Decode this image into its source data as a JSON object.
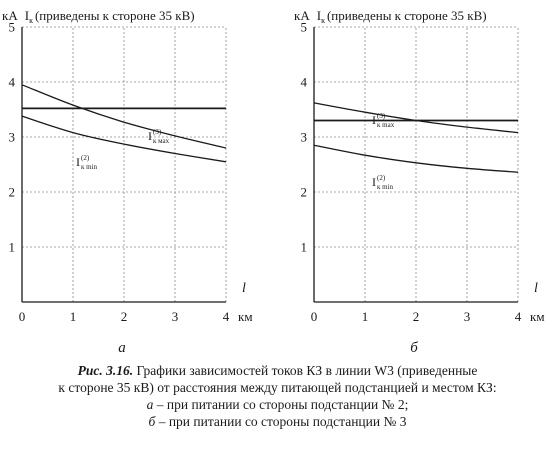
{
  "chart_data": [
    {
      "type": "line",
      "panel_label": "а",
      "ylabel": "кА",
      "ytitle_main": "I",
      "ytitle_sub": "к",
      "ytitle_rest": "(приведены к стороне 35 кВ)",
      "xlabel": "l",
      "xunit": "км",
      "xlim": [
        0,
        4
      ],
      "ylim": [
        0,
        5
      ],
      "xticks": [
        "0",
        "1",
        "2",
        "3",
        "4"
      ],
      "yticks": [
        "1",
        "2",
        "3",
        "4",
        "5"
      ],
      "grid": "dashed",
      "series": [
        {
          "name": "Iк max(3)",
          "label_main": "I",
          "label_sub": "к мах",
          "label_sup": "(3)",
          "x": [
            0,
            1,
            2,
            3,
            4
          ],
          "y": [
            3.95,
            3.58,
            3.27,
            3.02,
            2.8
          ]
        },
        {
          "name": "Iк min(2)",
          "label_main": "I",
          "label_sub": "к min",
          "label_sup": "(2)",
          "x": [
            0,
            1,
            2,
            3,
            4
          ],
          "y": [
            3.38,
            3.08,
            2.87,
            2.7,
            2.55
          ]
        },
        {
          "name": "",
          "x": [
            0,
            4
          ],
          "y": [
            3.52,
            3.52
          ]
        }
      ]
    },
    {
      "type": "line",
      "panel_label": "б",
      "ylabel": "кА",
      "ytitle_main": "I",
      "ytitle_sub": "к",
      "ytitle_rest": "(приведены к стороне 35 кВ)",
      "xlabel": "l",
      "xunit": "км",
      "xlim": [
        0,
        4
      ],
      "ylim": [
        0,
        5
      ],
      "xticks": [
        "0",
        "1",
        "2",
        "3",
        "4"
      ],
      "yticks": [
        "1",
        "2",
        "3",
        "4",
        "5"
      ],
      "grid": "dashed",
      "series": [
        {
          "name": "Iк max(3)",
          "label_main": "I",
          "label_sub": "к max",
          "label_sup": "(3)",
          "x": [
            0,
            1,
            2,
            3,
            4
          ],
          "y": [
            3.62,
            3.45,
            3.3,
            3.18,
            3.08
          ]
        },
        {
          "name": "Iк min(2)",
          "label_main": "I",
          "label_sub": "к min",
          "label_sup": "(2)",
          "x": [
            0,
            1,
            2,
            3,
            4
          ],
          "y": [
            2.85,
            2.67,
            2.53,
            2.43,
            2.36
          ]
        },
        {
          "name": "",
          "x": [
            0,
            4
          ],
          "y": [
            3.3,
            3.3
          ]
        }
      ]
    }
  ],
  "caption": {
    "fig_number": "Рис. 3.16.",
    "line1_rest": "Графики зависимостей токов КЗ в линии W3 (приведенные",
    "line2": "к стороне 35 кВ) от расстояния между питающей подстанцией и местом КЗ:",
    "item_a_letter": "а",
    "item_a_text": "– при питании со стороны подстанции № 2;",
    "item_b_letter": "б",
    "item_b_text": "– при питании со стороны подстанции № 3"
  },
  "colors": {
    "ink": "#1a1a1a",
    "grid": "#8a8a8a"
  }
}
